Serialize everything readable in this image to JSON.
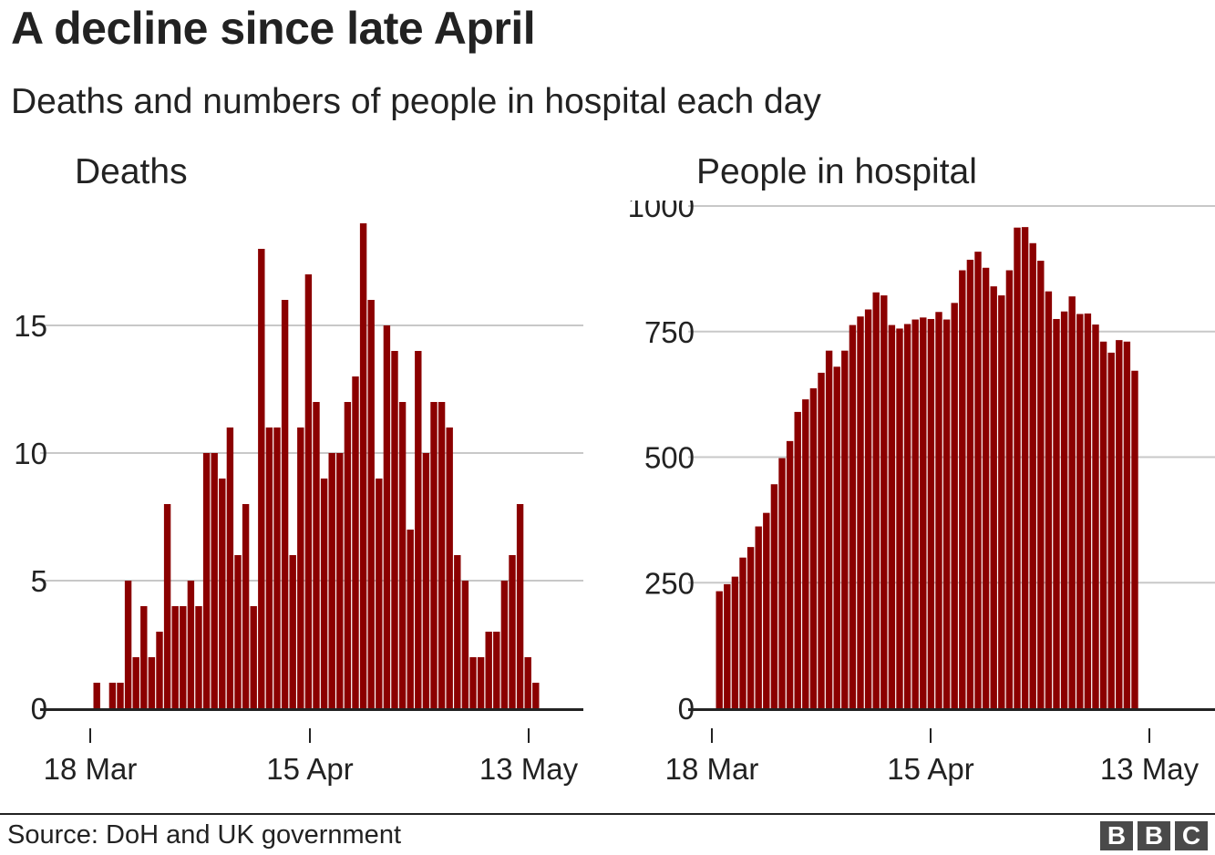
{
  "header": {
    "title": "A decline since late April",
    "subtitle": "Deaths and numbers of people in hospital each day"
  },
  "footer": {
    "source": "Source: DoH and UK government",
    "logo_letters": [
      "B",
      "B",
      "C"
    ]
  },
  "colors": {
    "bar": "#8b0000",
    "grid": "#c8c8c8",
    "axis": "#222222"
  },
  "chart_data": [
    {
      "type": "bar",
      "title": "Deaths",
      "xlabel": "",
      "ylabel": "",
      "x_start": "18 Mar",
      "x_ticks": [
        "18 Mar",
        "15 Apr",
        "13 May"
      ],
      "y_ticks": [
        0,
        5,
        10,
        15
      ],
      "ylim": [
        0,
        19.5
      ],
      "grid": true,
      "values": [
        1,
        0,
        1,
        1,
        5,
        2,
        4,
        2,
        3,
        8,
        4,
        4,
        5,
        4,
        10,
        10,
        9,
        11,
        6,
        8,
        4,
        18,
        11,
        11,
        16,
        6,
        11,
        17,
        12,
        9,
        10,
        10,
        12,
        13,
        19,
        16,
        9,
        15,
        14,
        12,
        7,
        14,
        10,
        12,
        12,
        11,
        6,
        5,
        2,
        2,
        3,
        3,
        5,
        6,
        8,
        2,
        1
      ]
    },
    {
      "type": "bar",
      "title": "People in hospital",
      "xlabel": "",
      "ylabel": "",
      "x_start": "18 Mar",
      "x_ticks": [
        "18 Mar",
        "15 Apr",
        "13 May"
      ],
      "y_ticks": [
        0,
        250,
        500,
        750,
        1000
      ],
      "ylim": [
        0,
        1000
      ],
      "grid": true,
      "values": [
        233,
        247,
        262,
        300,
        321,
        362,
        389,
        446,
        498,
        532,
        590,
        615,
        637,
        668,
        712,
        680,
        712,
        763,
        780,
        794,
        828,
        822,
        763,
        756,
        765,
        774,
        778,
        775,
        789,
        774,
        807,
        872,
        893,
        909,
        877,
        840,
        822,
        872,
        957,
        958,
        926,
        891,
        830,
        775,
        790,
        820,
        785,
        786,
        764,
        730,
        708,
        733,
        730,
        672
      ]
    }
  ]
}
